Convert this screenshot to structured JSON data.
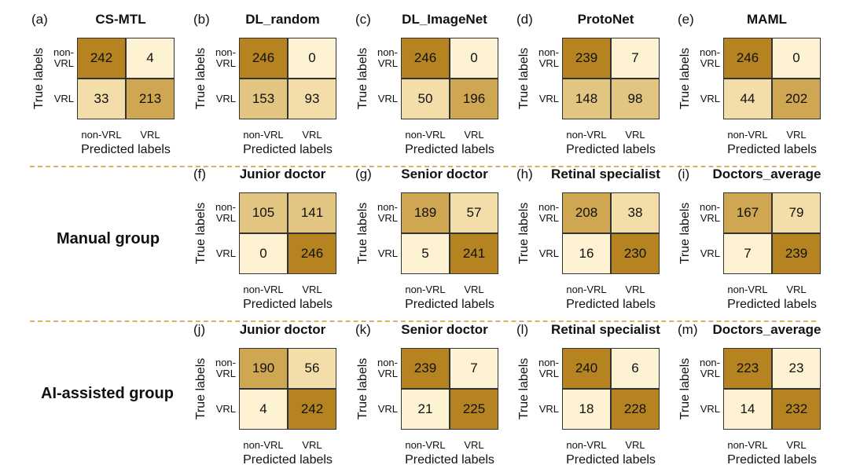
{
  "groups": {
    "manual": "Manual group",
    "ai_assisted": "AI-assisted group"
  },
  "axis_text": {
    "true_labels": "True labels",
    "predicted_labels": "Predicted labels",
    "class_0_line1": "non-",
    "class_0_line2": "VRL",
    "class_0": "non-VRL",
    "class_1": "VRL"
  },
  "colors": {
    "scale": [
      "#fdf3d2",
      "#f3deaa",
      "#e3c582",
      "#cfa652",
      "#b58421"
    ],
    "divider": "#d9b25f",
    "border": "#333333"
  },
  "chart_data": [
    {
      "type": "heatmap",
      "letter": "(a)",
      "title": "CS-MTL",
      "xlabel": "Predicted labels",
      "ylabel": "True labels",
      "rows": [
        "non-VRL",
        "VRL"
      ],
      "cols": [
        "non-VRL",
        "VRL"
      ],
      "values": [
        [
          242,
          4
        ],
        [
          33,
          213
        ]
      ]
    },
    {
      "type": "heatmap",
      "letter": "(b)",
      "title": "DL_random",
      "xlabel": "Predicted labels",
      "ylabel": "True labels",
      "rows": [
        "non-VRL",
        "VRL"
      ],
      "cols": [
        "non-VRL",
        "VRL"
      ],
      "values": [
        [
          246,
          0
        ],
        [
          153,
          93
        ]
      ]
    },
    {
      "type": "heatmap",
      "letter": "(c)",
      "title": "DL_ImageNet",
      "xlabel": "Predicted labels",
      "ylabel": "True labels",
      "rows": [
        "non-VRL",
        "VRL"
      ],
      "cols": [
        "non-VRL",
        "VRL"
      ],
      "values": [
        [
          246,
          0
        ],
        [
          50,
          196
        ]
      ]
    },
    {
      "type": "heatmap",
      "letter": "(d)",
      "title": "ProtoNet",
      "xlabel": "Predicted labels",
      "ylabel": "True labels",
      "rows": [
        "non-VRL",
        "VRL"
      ],
      "cols": [
        "non-VRL",
        "VRL"
      ],
      "values": [
        [
          239,
          7
        ],
        [
          148,
          98
        ]
      ]
    },
    {
      "type": "heatmap",
      "letter": "(e)",
      "title": "MAML",
      "xlabel": "Predicted labels",
      "ylabel": "True labels",
      "rows": [
        "non-VRL",
        "VRL"
      ],
      "cols": [
        "non-VRL",
        "VRL"
      ],
      "values": [
        [
          246,
          0
        ],
        [
          44,
          202
        ]
      ]
    },
    {
      "type": "heatmap",
      "letter": "(f)",
      "title": "Junior doctor",
      "xlabel": "Predicted labels",
      "ylabel": "True labels",
      "rows": [
        "non-VRL",
        "VRL"
      ],
      "cols": [
        "non-VRL",
        "VRL"
      ],
      "values": [
        [
          105,
          141
        ],
        [
          0,
          246
        ]
      ]
    },
    {
      "type": "heatmap",
      "letter": "(g)",
      "title": "Senior doctor",
      "xlabel": "Predicted labels",
      "ylabel": "True labels",
      "rows": [
        "non-VRL",
        "VRL"
      ],
      "cols": [
        "non-VRL",
        "VRL"
      ],
      "values": [
        [
          189,
          57
        ],
        [
          5,
          241
        ]
      ]
    },
    {
      "type": "heatmap",
      "letter": "(h)",
      "title": "Retinal specialist",
      "xlabel": "Predicted labels",
      "ylabel": "True labels",
      "rows": [
        "non-VRL",
        "VRL"
      ],
      "cols": [
        "non-VRL",
        "VRL"
      ],
      "values": [
        [
          208,
          38
        ],
        [
          16,
          230
        ]
      ]
    },
    {
      "type": "heatmap",
      "letter": "(i)",
      "title": "Doctors_average",
      "xlabel": "Predicted labels",
      "ylabel": "True labels",
      "rows": [
        "non-VRL",
        "VRL"
      ],
      "cols": [
        "non-VRL",
        "VRL"
      ],
      "values": [
        [
          167,
          79
        ],
        [
          7,
          239
        ]
      ]
    },
    {
      "type": "heatmap",
      "letter": "(j)",
      "title": "Junior doctor",
      "xlabel": "Predicted labels",
      "ylabel": "True labels",
      "rows": [
        "non-VRL",
        "VRL"
      ],
      "cols": [
        "non-VRL",
        "VRL"
      ],
      "values": [
        [
          190,
          56
        ],
        [
          4,
          242
        ]
      ]
    },
    {
      "type": "heatmap",
      "letter": "(k)",
      "title": "Senior doctor",
      "xlabel": "Predicted labels",
      "ylabel": "True labels",
      "rows": [
        "non-VRL",
        "VRL"
      ],
      "cols": [
        "non-VRL",
        "VRL"
      ],
      "values": [
        [
          239,
          7
        ],
        [
          21,
          225
        ]
      ]
    },
    {
      "type": "heatmap",
      "letter": "(l)",
      "title": "Retinal specialist",
      "xlabel": "Predicted labels",
      "ylabel": "True labels",
      "rows": [
        "non-VRL",
        "VRL"
      ],
      "cols": [
        "non-VRL",
        "VRL"
      ],
      "values": [
        [
          240,
          6
        ],
        [
          18,
          228
        ]
      ]
    },
    {
      "type": "heatmap",
      "letter": "(m)",
      "title": "Doctors_average",
      "xlabel": "Predicted labels",
      "ylabel": "True labels",
      "rows": [
        "non-VRL",
        "VRL"
      ],
      "cols": [
        "non-VRL",
        "VRL"
      ],
      "values": [
        [
          223,
          23
        ],
        [
          14,
          232
        ]
      ]
    }
  ]
}
